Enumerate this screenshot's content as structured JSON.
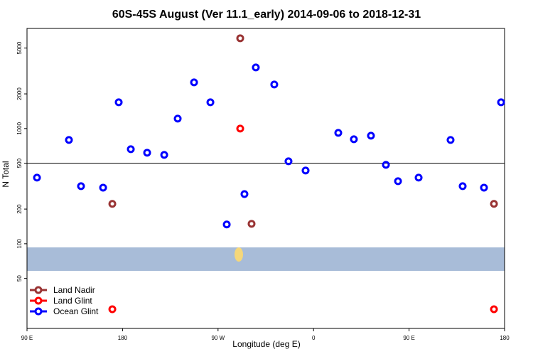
{
  "chart_data": {
    "type": "scatter",
    "title": "60S-45S August (Ver 11.1_early)   2014-09-06 to 2018-12-31",
    "x_label": "Longitude (deg E)",
    "y_label": "N Total",
    "log_y": true,
    "hline": 500,
    "legend_position": "bottom-left",
    "xlim": [
      90,
      540
    ],
    "xticks": [
      {
        "value": 90,
        "label": "90 E"
      },
      {
        "value": 180,
        "label": "180"
      },
      {
        "value": 270,
        "label": "90 W"
      },
      {
        "value": 360,
        "label": "0"
      },
      {
        "value": 450,
        "label": "90 E"
      },
      {
        "value": 540,
        "label": "180"
      }
    ],
    "ylim": [
      18.4,
      7400
    ],
    "yticks": [
      50,
      100,
      200,
      500,
      1000,
      2000,
      5000
    ],
    "series": [
      {
        "name": "Land Nadir",
        "color": "#993333",
        "x": [
          170.4,
          290.9,
          301.6,
          530
        ],
        "values": [
          222,
          6081,
          149,
          222
        ]
      },
      {
        "name": "Land Glint",
        "color": "#ff0000",
        "x": [
          170.4,
          290.9,
          530
        ],
        "values": [
          27,
          1000,
          27
        ]
      },
      {
        "name": "Ocean Glint",
        "color": "#0000ff",
        "x": [
          99.4,
          129.5,
          140.9,
          161.7,
          176.4,
          187.8,
          203.2,
          219.3,
          232,
          247.4,
          262.8,
          278.2,
          294.9,
          305.6,
          323,
          336.4,
          352.5,
          383.3,
          398,
          414.1,
          428.2,
          439.6,
          459,
          489.1,
          500.5,
          520.6,
          536.7
        ],
        "values": [
          375,
          796,
          316,
          307,
          1692,
          662,
          617,
          591,
          1220,
          2518,
          1692,
          147,
          270,
          3395,
          2414,
          520,
          432,
          918,
          808,
          867,
          484,
          349,
          375,
          796,
          316,
          307,
          1692
        ]
      }
    ]
  }
}
